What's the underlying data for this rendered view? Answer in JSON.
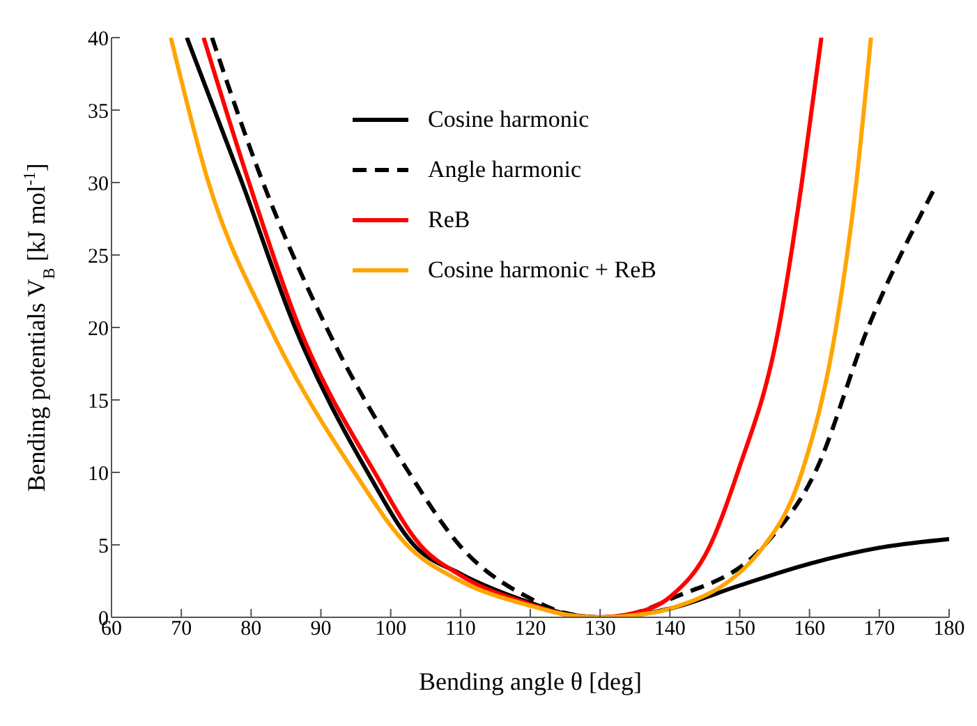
{
  "chart_data": {
    "type": "line",
    "xlabel": "Bending angle θ [deg]",
    "ylabel": "Bending potentials V$_{B}$ [kJ mol$^{-1}$]",
    "xlim": [
      60,
      180
    ],
    "xticks": [
      60,
      70,
      80,
      90,
      100,
      110,
      120,
      130,
      140,
      150,
      160,
      170,
      180
    ],
    "ylim": [
      0,
      40
    ],
    "yticks": [
      0,
      5,
      10,
      15,
      20,
      25,
      30,
      35,
      40
    ],
    "grid": false,
    "legend": "top",
    "marker": "none",
    "series": [
      {
        "name": "Cosine harmonic",
        "color": "#000000",
        "line_style": "solid",
        "x": [
          70.8,
          78.7,
          86.3,
          96.7,
          103.3,
          110,
          120,
          125,
          130,
          135,
          140,
          150,
          160,
          170,
          180
        ],
        "values": [
          40,
          30,
          20,
          10,
          5,
          3,
          1,
          0.25,
          0,
          0.15,
          0.6,
          2.2,
          3.7,
          4.8,
          5.4
        ]
      },
      {
        "name": "Angle harmonic",
        "color": "#000000",
        "line_style": "dashed",
        "x": [
          74.4,
          81.7,
          90.8,
          102.6,
          109.8,
          120,
          125,
          130,
          135,
          140,
          153.6,
          160.8,
          168.4,
          177.7
        ],
        "values": [
          40,
          30,
          20,
          10,
          5,
          1.3,
          0.3,
          0,
          0.3,
          1.25,
          5,
          10,
          20,
          29.4
        ]
      },
      {
        "name": "ReB",
        "color": "#ff0000",
        "line_style": "solid",
        "x": [
          73.2,
          79.7,
          86.9,
          97.7,
          104.2,
          110,
          120,
          125,
          130,
          135,
          140,
          145.8,
          149.7,
          155.6,
          158.9,
          161.7
        ],
        "values": [
          40,
          30,
          20,
          10,
          5,
          2.9,
          0.9,
          0.2,
          0,
          0.3,
          1.4,
          5,
          10,
          20,
          30,
          40
        ]
      },
      {
        "name": "Cosine harmonic + ReB",
        "color": "#ffa500",
        "line_style": "solid",
        "x": [
          68.5,
          73.9,
          82.7,
          94.8,
          102.3,
          110,
          120,
          125,
          130,
          135,
          140,
          153.6,
          158.9,
          163.8,
          166.7,
          168.8
        ],
        "values": [
          40,
          30,
          20,
          10,
          5,
          2.5,
          0.8,
          0.2,
          0,
          0.15,
          0.6,
          5,
          10,
          20,
          30,
          40
        ]
      }
    ]
  }
}
